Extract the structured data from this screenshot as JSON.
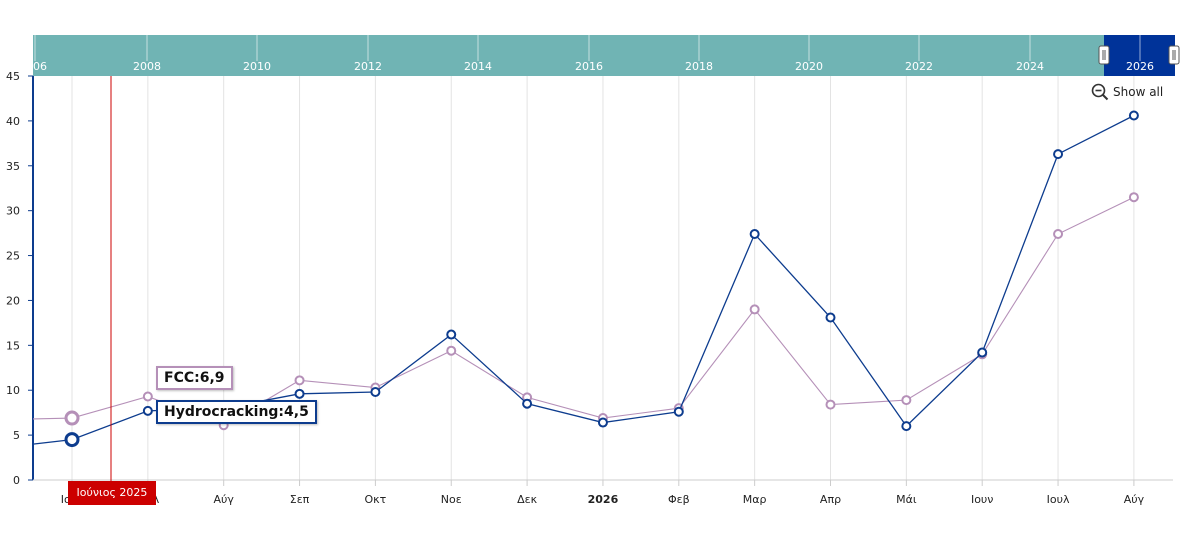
{
  "navigator": {
    "year_labels": [
      "06",
      "2008",
      "2010",
      "2012",
      "2014",
      "2016",
      "2018",
      "2020",
      "2022",
      "2024",
      "2026"
    ],
    "background_color": "#70b4b4",
    "selection_color": "#003399"
  },
  "toolbar": {
    "show_all_label": "Show all"
  },
  "cursor": {
    "label": "Ιούνιος 2025",
    "color": "#cc0000"
  },
  "tooltips": {
    "fcc": "FCC:6,9",
    "hydrocracking": "Hydrocracking:4,5"
  },
  "chart_data": {
    "type": "line",
    "categories": [
      "Ιουν",
      "Ιουλ",
      "Αύγ",
      "Σεπ",
      "Οκτ",
      "Νοε",
      "Δεκ",
      "2026",
      "Φεβ",
      "Μαρ",
      "Απρ",
      "Μάι",
      "Ιουν",
      "Ιουλ",
      "Αύγ"
    ],
    "bold_categories": [
      "2026"
    ],
    "ylim": [
      0,
      45
    ],
    "yticks": [
      0,
      5,
      10,
      15,
      20,
      25,
      30,
      35,
      40,
      45
    ],
    "grid": "vertical",
    "series": [
      {
        "name": "FCC",
        "color": "#b590b8",
        "values": [
          6.9,
          9.3,
          6.1,
          11.1,
          10.3,
          14.4,
          9.2,
          6.9,
          8.0,
          19.0,
          8.4,
          8.9,
          14.0,
          27.4,
          31.5
        ],
        "lead_in": 6.8
      },
      {
        "name": "Hydrocracking",
        "color": "#0d3c8e",
        "values": [
          4.5,
          7.7,
          8.0,
          9.6,
          9.8,
          16.2,
          8.5,
          6.4,
          7.6,
          27.4,
          18.1,
          6.0,
          14.2,
          36.3,
          40.6
        ],
        "lead_in": 4.0
      }
    ]
  }
}
